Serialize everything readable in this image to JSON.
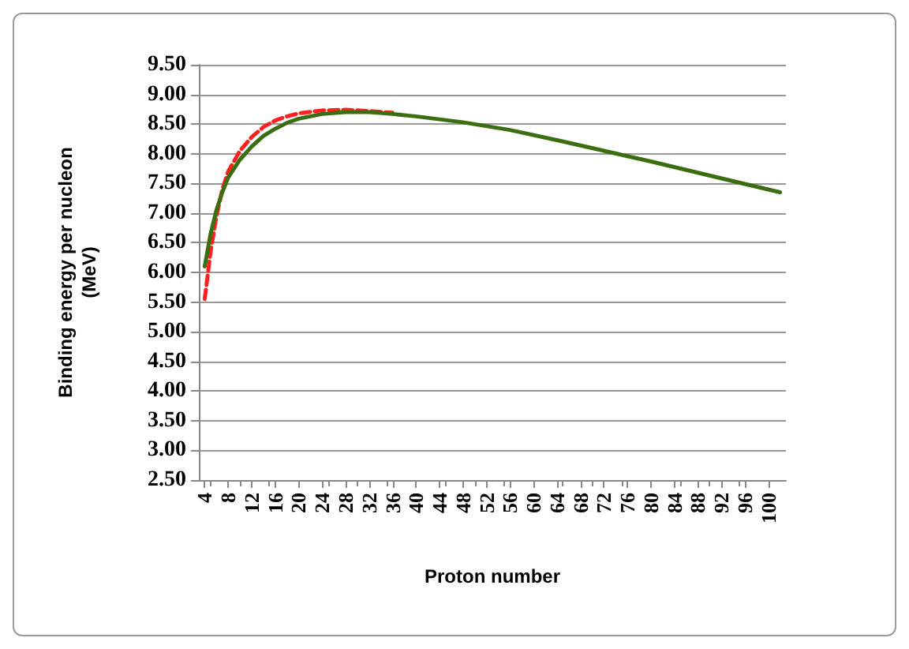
{
  "chart_data": {
    "type": "line",
    "xlabel": "Proton number",
    "ylabel": "Binding energy per nucleon\n(MeV)",
    "xlim": [
      3,
      103
    ],
    "xticks": [
      4,
      8,
      12,
      16,
      20,
      24,
      28,
      32,
      36,
      40,
      44,
      48,
      52,
      56,
      60,
      64,
      68,
      72,
      76,
      80,
      84,
      88,
      92,
      96,
      100
    ],
    "ylim": [
      2.5,
      9.5
    ],
    "yticks": [
      {
        "value": 2.5,
        "label": "2.50"
      },
      {
        "value": 3,
        "label": "3.00"
      },
      {
        "value": 3.5,
        "label": "3.50"
      },
      {
        "value": 4,
        "label": "4.00"
      },
      {
        "value": 4.5,
        "label": "4.50"
      },
      {
        "value": 5,
        "label": "5.00"
      },
      {
        "value": 5.5,
        "label": "5.50"
      },
      {
        "value": 6,
        "label": "6.00"
      },
      {
        "value": 6.5,
        "label": "6.50"
      },
      {
        "value": 7,
        "label": "7.00"
      },
      {
        "value": 7.5,
        "label": "7.50"
      },
      {
        "value": 8,
        "label": "8.00"
      },
      {
        "value": 8.5,
        "label": "8.50"
      },
      {
        "value": 9,
        "label": "9.00"
      },
      {
        "value": 9.5,
        "label": "9.50"
      }
    ],
    "grid": "y",
    "marker": "none",
    "x": [
      4,
      5,
      6,
      7,
      8,
      10,
      12,
      14,
      16,
      18,
      20,
      24,
      28,
      32,
      36,
      40,
      48,
      56,
      64,
      72,
      80,
      88,
      96,
      102
    ],
    "series": [
      {
        "color": "#ff2020",
        "line_style": "dashed",
        "values": [
          5.55,
          6.35,
          6.95,
          7.4,
          7.7,
          8.05,
          8.28,
          8.45,
          8.56,
          8.63,
          8.68,
          8.73,
          8.74,
          8.72,
          8.69,
          null,
          null,
          null,
          null,
          null,
          null,
          null,
          null,
          null
        ]
      },
      {
        "color": "#3a6e10",
        "line_style": "solid",
        "values": [
          6.1,
          6.65,
          7.05,
          7.35,
          7.6,
          7.9,
          8.12,
          8.3,
          8.42,
          8.52,
          8.59,
          8.67,
          8.7,
          8.7,
          8.67,
          8.63,
          8.53,
          8.4,
          8.23,
          8.05,
          7.87,
          7.68,
          7.49,
          7.35
        ]
      }
    ]
  }
}
